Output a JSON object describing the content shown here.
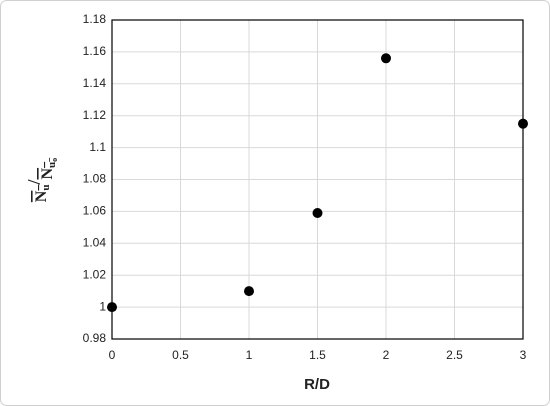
{
  "chart_data": {
    "type": "scatter",
    "xlabel": "R/D",
    "ylabel": [
      "N",
      "u",
      "/",
      "N",
      "u",
      "o"
    ],
    "x": [
      0,
      1,
      1.5,
      2,
      3
    ],
    "values": [
      1.0,
      1.01,
      1.059,
      1.156,
      1.115
    ],
    "color": "#000000",
    "xlim": [
      0,
      3
    ],
    "xticks": [
      0,
      0.5,
      1,
      1.5,
      2,
      2.5,
      3
    ],
    "ylim": [
      0.98,
      1.18
    ],
    "yticks": [
      0.98,
      1,
      1.02,
      1.04,
      1.06,
      1.08,
      1.1,
      1.12,
      1.14,
      1.16,
      1.18
    ],
    "grid": true
  }
}
